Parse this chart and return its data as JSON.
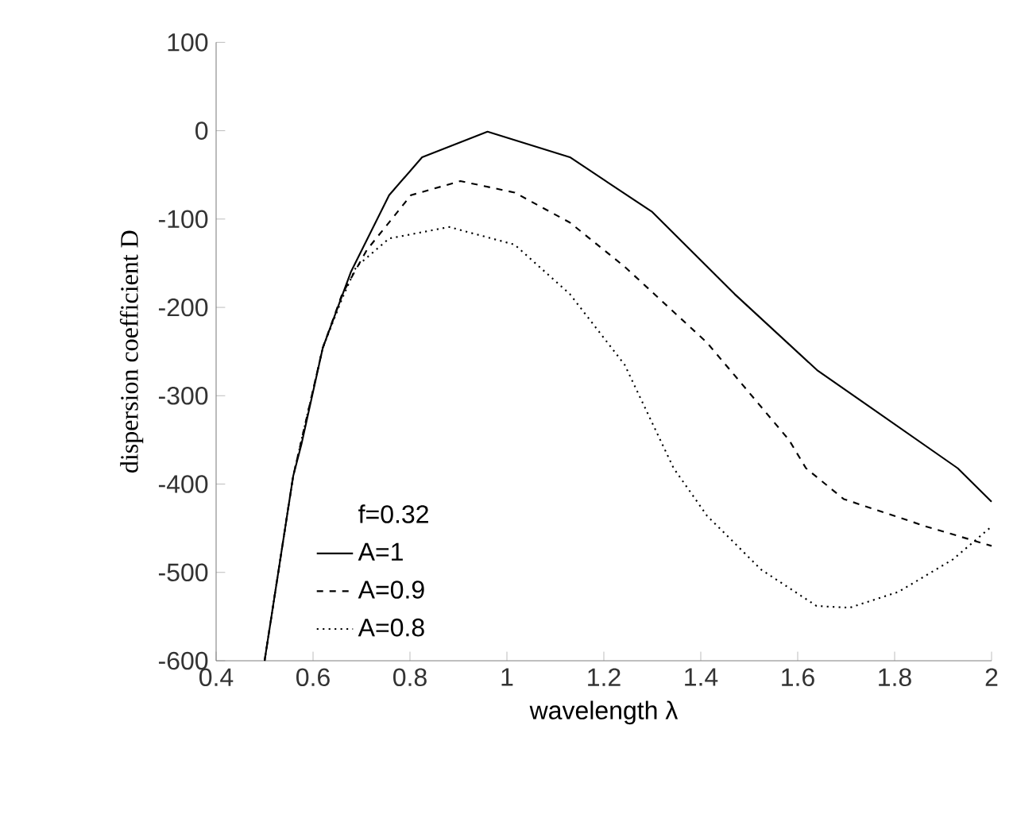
{
  "chart_data": {
    "type": "line",
    "xlabel": "wavelength λ",
    "ylabel": "dispersion  coefficient  D",
    "legend_title": "f=0.32",
    "legend": "bottom left",
    "xlim": [
      0.4,
      2
    ],
    "ylim": [
      -600,
      100
    ],
    "xticks": [
      0.4,
      0.6,
      0.8,
      1,
      1.2,
      1.4,
      1.6,
      1.8,
      2
    ],
    "yticks": [
      -600,
      -500,
      -400,
      -300,
      -200,
      -100,
      0,
      100
    ],
    "series": [
      {
        "name": "A=1",
        "color": "#000000",
        "line_style": "solid",
        "x": [
          0.5,
          0.559,
          0.576,
          0.62,
          0.678,
          0.757,
          0.825,
          0.96,
          1.13,
          1.3,
          1.47,
          1.64,
          1.93,
          2.0
        ],
        "values": [
          -600,
          -391,
          -355,
          -246,
          -160,
          -73,
          -30,
          -1,
          -30,
          -92,
          -185,
          -271,
          -382,
          -420
        ]
      },
      {
        "name": "A=0.9",
        "color": "#000000",
        "line_style": "dashed",
        "x": [
          0.5,
          0.559,
          0.62,
          0.66,
          0.711,
          0.802,
          0.904,
          1.016,
          1.13,
          1.243,
          1.413,
          1.582,
          1.617,
          1.695,
          1.865,
          2.0
        ],
        "values": [
          -600,
          -391,
          -246,
          -185,
          -135,
          -73,
          -57,
          -70,
          -104,
          -154,
          -240,
          -350,
          -382,
          -417,
          -448,
          -470
        ]
      },
      {
        "name": "A=0.8",
        "color": "#000000",
        "line_style": "dotted",
        "x": [
          0.5,
          0.559,
          0.62,
          0.66,
          0.689,
          0.757,
          0.881,
          1.016,
          1.13,
          1.243,
          1.344,
          1.413,
          1.525,
          1.639,
          1.707,
          1.808,
          1.921,
          2.0
        ],
        "values": [
          -600,
          -391,
          -246,
          -190,
          -154,
          -122,
          -109,
          -129,
          -185,
          -265,
          -382,
          -436,
          -497,
          -538,
          -540,
          -522,
          -485,
          -448
        ]
      }
    ]
  }
}
